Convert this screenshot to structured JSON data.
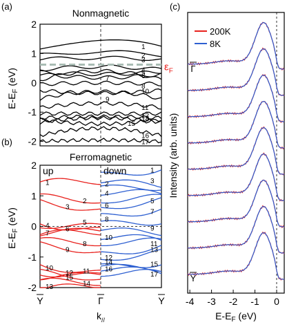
{
  "panel_labels": {
    "a": "(a)",
    "b": "(b)",
    "c": "(c)"
  },
  "chart_data": [
    {
      "id": "a",
      "type": "line",
      "title": "Nonmagnetic",
      "xlabel": "",
      "ylabel": "E-E_F (eV)",
      "ylim": [
        -2.15,
        2.0
      ],
      "yticks": [
        2,
        1,
        0,
        -1,
        -2
      ],
      "fermi_label": "ε_F",
      "fermi_energy": 0.62,
      "band_labels": [
        "1",
        "2",
        "3",
        "4",
        "5",
        "6",
        "7",
        "8",
        "9",
        "10",
        "11",
        "12",
        "13",
        "14",
        "15",
        "16",
        "17"
      ],
      "band_label_energies": [
        1.25,
        0.95,
        0.8,
        0.45,
        0.35,
        0.25,
        0.17,
        -0.1,
        -0.55,
        -0.28,
        -0.83,
        -1.1,
        -1.2,
        -1.22,
        -1.37,
        -1.78,
        -2.0
      ],
      "color": "#000000"
    },
    {
      "id": "b",
      "type": "line",
      "title": "Ferromagnetic",
      "xlabel": "k_//",
      "ylabel": "E-E_F (eV)",
      "ylim": [
        -2.0,
        2.0
      ],
      "yticks": [
        2,
        1,
        0,
        -1,
        -2
      ],
      "xticks": [
        "Y",
        "Γ",
        "Y"
      ],
      "series": [
        {
          "name": "up",
          "color": "#e8201c",
          "band_labels": [
            "1",
            "2",
            "3",
            "4",
            "5",
            "6",
            "7",
            "8",
            "9",
            "10",
            "11",
            "12",
            "13",
            "14",
            "15"
          ],
          "band_label_energies": [
            1.45,
            0.85,
            0.65,
            0.05,
            0.15,
            -0.07,
            -0.2,
            -0.55,
            -0.75,
            -1.35,
            -1.45,
            -1.5,
            -1.95,
            -1.85,
            -1.65
          ]
        },
        {
          "name": "down",
          "color": "#2d5fd1",
          "band_labels": [
            "1",
            "2",
            "3",
            "4",
            "5",
            "6",
            "7",
            "8",
            "9",
            "10",
            "11",
            "12",
            "13",
            "14",
            "15",
            "16",
            "17"
          ],
          "band_label_energies": [
            1.85,
            1.4,
            1.5,
            1.1,
            0.85,
            0.7,
            0.5,
            0.25,
            -0.05,
            -0.35,
            -0.55,
            -1.0,
            -0.75,
            -1.15,
            -1.22,
            -1.38,
            -1.55
          ]
        }
      ]
    },
    {
      "id": "c",
      "type": "line",
      "xlabel": "E-E_F (eV)",
      "ylabel": "Intensity (arb. units)",
      "xlim": [
        -4.1,
        0.35
      ],
      "xticks": [
        -4,
        -3,
        -2,
        -1,
        0
      ],
      "k_labels": {
        "top": "Γ",
        "bottom": "Y"
      },
      "n_curves": 9,
      "series": [
        {
          "name": "200K",
          "color": "#e8201c"
        },
        {
          "name": "8K",
          "color": "#2d5fd1"
        }
      ],
      "peak_energy": -0.6
    }
  ]
}
